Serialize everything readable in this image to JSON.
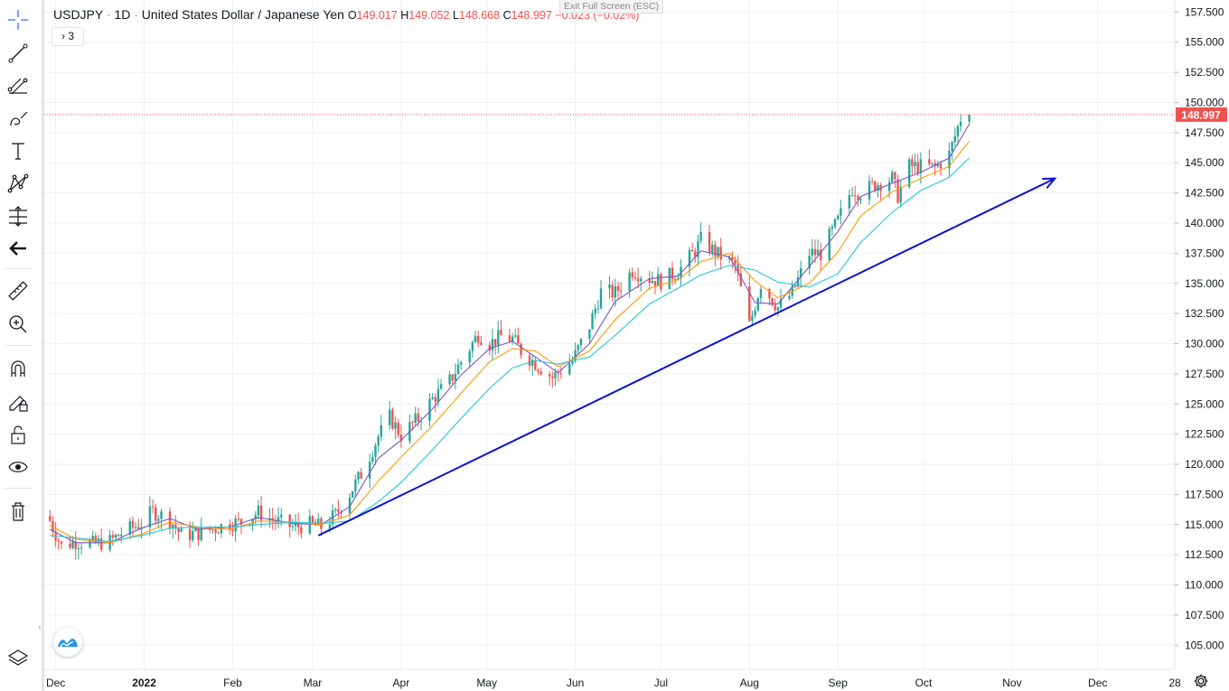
{
  "header": {
    "symbol": "USDJPY",
    "sep1": "·",
    "interval": "1D",
    "sep2": "·",
    "description": "United States Dollar / Japanese Yen",
    "o_label": "O",
    "o_value": "149.017",
    "h_label": "H",
    "h_value": "149.052",
    "l_label": "L",
    "l_value": "148.668",
    "c_label": "C",
    "c_value": "148.997",
    "change": "−0.023",
    "change_pct": "(−0.02%)",
    "indicators_toggle": "3"
  },
  "banner": {
    "exit_fullscreen": "Exit Full Screen (ESC)"
  },
  "colors": {
    "up": "#26a69a",
    "down": "#ef5350",
    "ma_fast": "#7e57c2",
    "ma_mid": "#ff9800",
    "ma_slow": "#26c6da",
    "trendline": "#0a12d6",
    "price_line": "#ef5350",
    "grid": "#eef0f3",
    "axis_text": "#131722"
  },
  "toolbar": {
    "items": [
      {
        "name": "crosshair-icon"
      },
      {
        "name": "trendline-tool-icon"
      },
      {
        "name": "fib-tool-icon"
      },
      {
        "name": "brush-tool-icon"
      },
      {
        "name": "text-tool-icon"
      },
      {
        "name": "pattern-tool-icon"
      },
      {
        "name": "prediction-tool-icon"
      },
      {
        "name": "back-arrow-icon"
      },
      {
        "name": "ruler-icon"
      },
      {
        "name": "zoom-in-icon"
      },
      {
        "name": "magnet-icon"
      },
      {
        "name": "lock-drawing-icon"
      },
      {
        "name": "unlock-icon"
      },
      {
        "name": "eye-icon"
      },
      {
        "name": "trash-icon"
      }
    ]
  },
  "chart_data": {
    "type": "candlestick",
    "title": "USDJPY · 1D · United States Dollar / Japanese Yen",
    "xlabel": "",
    "ylabel": "",
    "x_range": [
      "2021-11-27",
      "2022-12-28"
    ],
    "ylim": [
      103.0,
      158.5
    ],
    "y_ticks": [
      "157.500",
      "155.000",
      "152.500",
      "150.000",
      "147.500",
      "145.000",
      "142.500",
      "140.000",
      "137.500",
      "135.000",
      "132.500",
      "130.000",
      "127.500",
      "125.000",
      "122.500",
      "120.000",
      "117.500",
      "115.000",
      "112.500",
      "110.000",
      "107.500",
      "105.000"
    ],
    "x_ticks": [
      {
        "label": "Dec",
        "date": "2021-12-01",
        "bold": false
      },
      {
        "label": "2022",
        "date": "2022-01-01",
        "bold": true
      },
      {
        "label": "Feb",
        "date": "2022-02-01",
        "bold": false
      },
      {
        "label": "Mar",
        "date": "2022-03-01",
        "bold": false
      },
      {
        "label": "Apr",
        "date": "2022-04-01",
        "bold": false
      },
      {
        "label": "May",
        "date": "2022-05-01",
        "bold": false
      },
      {
        "label": "Jun",
        "date": "2022-06-01",
        "bold": false
      },
      {
        "label": "Jul",
        "date": "2022-07-01",
        "bold": false
      },
      {
        "label": "Aug",
        "date": "2022-08-01",
        "bold": false
      },
      {
        "label": "Sep",
        "date": "2022-09-01",
        "bold": false
      },
      {
        "label": "Oct",
        "date": "2022-10-01",
        "bold": false
      },
      {
        "label": "Nov",
        "date": "2022-11-01",
        "bold": false
      },
      {
        "label": "Dec",
        "date": "2022-12-01",
        "bold": false
      },
      {
        "label": "28",
        "date": "2022-12-28",
        "bold": false
      }
    ],
    "last_price": "148.997",
    "last_price_value": 148.997,
    "series": [
      {
        "name": "price (daily close, approx.)",
        "kind": "candles",
        "points": [
          [
            "2021-11-29",
            115.3
          ],
          [
            "2021-12-03",
            113.2
          ],
          [
            "2021-12-08",
            113.6
          ],
          [
            "2021-12-14",
            113.4
          ],
          [
            "2021-12-20",
            113.6
          ],
          [
            "2021-12-24",
            114.3
          ],
          [
            "2021-12-31",
            115.1
          ],
          [
            "2022-01-04",
            116.1
          ],
          [
            "2022-01-10",
            115.4
          ],
          [
            "2022-01-14",
            114.1
          ],
          [
            "2022-01-20",
            114.3
          ],
          [
            "2022-01-26",
            114.7
          ],
          [
            "2022-01-31",
            115.1
          ],
          [
            "2022-02-04",
            115.2
          ],
          [
            "2022-02-10",
            116.0
          ],
          [
            "2022-02-16",
            115.3
          ],
          [
            "2022-02-22",
            114.8
          ],
          [
            "2022-02-28",
            115.0
          ],
          [
            "2022-03-04",
            114.8
          ],
          [
            "2022-03-09",
            115.8
          ],
          [
            "2022-03-14",
            117.6
          ],
          [
            "2022-03-18",
            119.2
          ],
          [
            "2022-03-24",
            122.3
          ],
          [
            "2022-03-28",
            123.9
          ],
          [
            "2022-04-01",
            122.4
          ],
          [
            "2022-04-07",
            123.8
          ],
          [
            "2022-04-12",
            125.4
          ],
          [
            "2022-04-18",
            126.9
          ],
          [
            "2022-04-22",
            128.5
          ],
          [
            "2022-04-28",
            130.8
          ],
          [
            "2022-05-02",
            130.0
          ],
          [
            "2022-05-06",
            130.6
          ],
          [
            "2022-05-10",
            130.4
          ],
          [
            "2022-05-13",
            129.4
          ],
          [
            "2022-05-18",
            128.4
          ],
          [
            "2022-05-24",
            127.2
          ],
          [
            "2022-05-31",
            128.6
          ],
          [
            "2022-06-06",
            131.5
          ],
          [
            "2022-06-10",
            134.3
          ],
          [
            "2022-06-15",
            134.2
          ],
          [
            "2022-06-21",
            136.1
          ],
          [
            "2022-06-27",
            135.4
          ],
          [
            "2022-07-01",
            135.2
          ],
          [
            "2022-07-07",
            136.0
          ],
          [
            "2022-07-13",
            137.7
          ],
          [
            "2022-07-15",
            138.6
          ],
          [
            "2022-07-21",
            137.4
          ],
          [
            "2022-07-27",
            136.5
          ],
          [
            "2022-08-01",
            131.5
          ],
          [
            "2022-08-05",
            135.0
          ],
          [
            "2022-08-11",
            133.0
          ],
          [
            "2022-08-16",
            134.2
          ],
          [
            "2022-08-22",
            137.5
          ],
          [
            "2022-08-26",
            137.5
          ],
          [
            "2022-09-01",
            140.2
          ],
          [
            "2022-09-06",
            142.9
          ],
          [
            "2022-09-09",
            142.5
          ],
          [
            "2022-09-14",
            143.2
          ],
          [
            "2022-09-20",
            143.7
          ],
          [
            "2022-09-22",
            142.3
          ],
          [
            "2022-09-26",
            144.7
          ],
          [
            "2022-09-30",
            144.7
          ],
          [
            "2022-10-05",
            144.6
          ],
          [
            "2022-10-10",
            145.7
          ],
          [
            "2022-10-14",
            148.7
          ],
          [
            "2022-10-17",
            148.997
          ]
        ]
      },
      {
        "name": "MA fast",
        "kind": "line",
        "color_key": "ma_fast",
        "points": [
          [
            "2021-11-29",
            114.6
          ],
          [
            "2021-12-08",
            113.5
          ],
          [
            "2021-12-20",
            113.5
          ],
          [
            "2021-12-31",
            114.7
          ],
          [
            "2022-01-10",
            115.5
          ],
          [
            "2022-01-20",
            114.6
          ],
          [
            "2022-01-31",
            114.8
          ],
          [
            "2022-02-10",
            115.6
          ],
          [
            "2022-02-22",
            115.1
          ],
          [
            "2022-03-04",
            115.0
          ],
          [
            "2022-03-14",
            116.5
          ],
          [
            "2022-03-24",
            120.5
          ],
          [
            "2022-04-01",
            122.0
          ],
          [
            "2022-04-12",
            124.6
          ],
          [
            "2022-04-22",
            127.4
          ],
          [
            "2022-05-02",
            129.6
          ],
          [
            "2022-05-10",
            130.2
          ],
          [
            "2022-05-18",
            128.9
          ],
          [
            "2022-05-26",
            127.6
          ],
          [
            "2022-06-06",
            130.0
          ],
          [
            "2022-06-15",
            133.5
          ],
          [
            "2022-06-27",
            135.4
          ],
          [
            "2022-07-07",
            135.6
          ],
          [
            "2022-07-15",
            137.7
          ],
          [
            "2022-07-25",
            137.2
          ],
          [
            "2022-08-03",
            133.4
          ],
          [
            "2022-08-11",
            133.3
          ],
          [
            "2022-08-22",
            136.4
          ],
          [
            "2022-09-01",
            139.3
          ],
          [
            "2022-09-09",
            142.2
          ],
          [
            "2022-09-20",
            143.3
          ],
          [
            "2022-09-30",
            144.2
          ],
          [
            "2022-10-10",
            145.4
          ],
          [
            "2022-10-17",
            148.2
          ]
        ]
      },
      {
        "name": "MA mid",
        "kind": "line",
        "color_key": "ma_mid",
        "points": [
          [
            "2021-11-29",
            114.9
          ],
          [
            "2021-12-08",
            113.8
          ],
          [
            "2021-12-20",
            113.5
          ],
          [
            "2021-12-31",
            114.2
          ],
          [
            "2022-01-10",
            115.2
          ],
          [
            "2022-01-20",
            114.8
          ],
          [
            "2022-01-31",
            114.6
          ],
          [
            "2022-02-10",
            115.3
          ],
          [
            "2022-02-22",
            115.2
          ],
          [
            "2022-03-04",
            115.0
          ],
          [
            "2022-03-14",
            115.8
          ],
          [
            "2022-03-24",
            118.6
          ],
          [
            "2022-04-01",
            120.6
          ],
          [
            "2022-04-12",
            123.2
          ],
          [
            "2022-04-22",
            125.9
          ],
          [
            "2022-05-02",
            128.5
          ],
          [
            "2022-05-10",
            129.6
          ],
          [
            "2022-05-18",
            129.4
          ],
          [
            "2022-05-26",
            128.1
          ],
          [
            "2022-06-06",
            129.4
          ],
          [
            "2022-06-15",
            132.0
          ],
          [
            "2022-06-27",
            134.6
          ],
          [
            "2022-07-07",
            135.3
          ],
          [
            "2022-07-15",
            136.8
          ],
          [
            "2022-07-25",
            137.5
          ],
          [
            "2022-08-03",
            135.2
          ],
          [
            "2022-08-11",
            133.8
          ],
          [
            "2022-08-22",
            135.0
          ],
          [
            "2022-09-01",
            137.6
          ],
          [
            "2022-09-09",
            140.6
          ],
          [
            "2022-09-20",
            142.6
          ],
          [
            "2022-09-30",
            143.7
          ],
          [
            "2022-10-10",
            144.7
          ],
          [
            "2022-10-17",
            146.8
          ]
        ]
      },
      {
        "name": "MA slow",
        "kind": "line",
        "color_key": "ma_slow",
        "points": [
          [
            "2021-11-29",
            114.1
          ],
          [
            "2021-12-08",
            113.9
          ],
          [
            "2021-12-20",
            113.6
          ],
          [
            "2021-12-31",
            114.1
          ],
          [
            "2022-01-10",
            114.7
          ],
          [
            "2022-01-20",
            114.8
          ],
          [
            "2022-01-31",
            114.8
          ],
          [
            "2022-02-10",
            115.0
          ],
          [
            "2022-02-22",
            115.2
          ],
          [
            "2022-03-04",
            115.1
          ],
          [
            "2022-03-14",
            115.3
          ],
          [
            "2022-03-24",
            116.9
          ],
          [
            "2022-04-01",
            118.5
          ],
          [
            "2022-04-12",
            121.2
          ],
          [
            "2022-04-22",
            123.8
          ],
          [
            "2022-05-02",
            126.3
          ],
          [
            "2022-05-10",
            128.0
          ],
          [
            "2022-05-18",
            128.6
          ],
          [
            "2022-05-26",
            128.3
          ],
          [
            "2022-06-06",
            128.9
          ],
          [
            "2022-06-15",
            130.7
          ],
          [
            "2022-06-27",
            133.3
          ],
          [
            "2022-07-07",
            134.6
          ],
          [
            "2022-07-15",
            135.7
          ],
          [
            "2022-07-25",
            136.5
          ],
          [
            "2022-08-03",
            136.1
          ],
          [
            "2022-08-11",
            135.1
          ],
          [
            "2022-08-22",
            134.7
          ],
          [
            "2022-09-01",
            135.8
          ],
          [
            "2022-09-09",
            138.4
          ],
          [
            "2022-09-20",
            140.9
          ],
          [
            "2022-09-30",
            142.7
          ],
          [
            "2022-10-10",
            143.8
          ],
          [
            "2022-10-17",
            145.4
          ]
        ]
      },
      {
        "name": "Trendline",
        "kind": "arrow",
        "color_key": "trendline",
        "points": [
          [
            "2022-03-03",
            114.1
          ],
          [
            "2022-11-16",
            143.7
          ]
        ]
      }
    ]
  }
}
